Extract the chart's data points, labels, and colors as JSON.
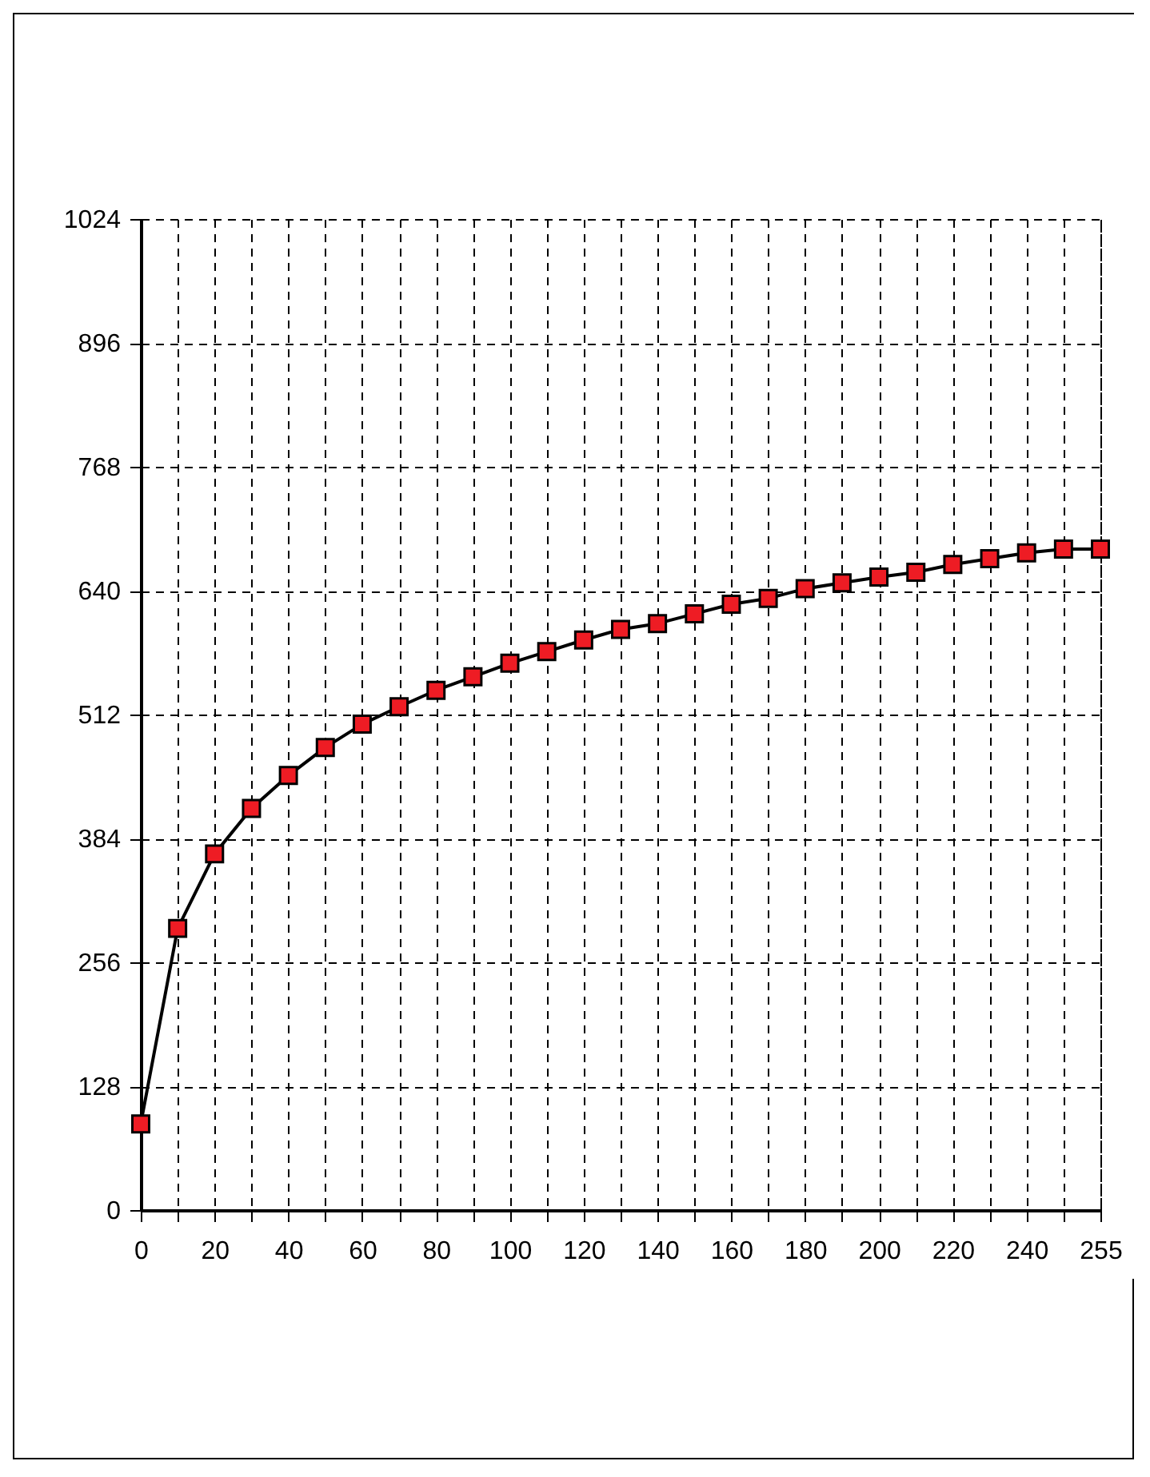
{
  "chart_data": {
    "type": "line",
    "categories": [
      "0",
      null,
      "20",
      null,
      "40",
      null,
      "60",
      null,
      "80",
      null,
      "100",
      null,
      "120",
      null,
      "140",
      null,
      "160",
      null,
      "180",
      null,
      "200",
      null,
      "220",
      null,
      "240",
      null,
      "255"
    ],
    "series": [
      {
        "color": "#ee1c24",
        "values": [
          89,
          291,
          368,
          415,
          449,
          478,
          502,
          520,
          537,
          551,
          565,
          577,
          589,
          600,
          606,
          616,
          626,
          632,
          642,
          648,
          654,
          659,
          667,
          673,
          679,
          683,
          683
        ]
      }
    ],
    "ylim": [
      0,
      1024
    ],
    "yticks": [
      0,
      128,
      256,
      384,
      512,
      640,
      768,
      896,
      1024
    ],
    "grid": true,
    "marker": "square",
    "line_style": "solid"
  }
}
